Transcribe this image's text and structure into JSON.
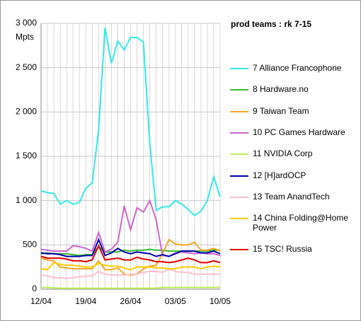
{
  "chart_data": {
    "type": "line",
    "title": "prod teams :  rk 7-15",
    "y_label": "Mpts",
    "categories": [
      "12/04",
      null,
      null,
      null,
      null,
      null,
      null,
      "19/04",
      null,
      null,
      null,
      null,
      null,
      null,
      "26/04",
      null,
      null,
      null,
      null,
      null,
      null,
      "03/05",
      null,
      null,
      null,
      null,
      null,
      null,
      "10/05"
    ],
    "ylim": [
      0,
      3000
    ],
    "yticks": [
      0,
      500,
      {
        "value": 1000,
        "label": "1 000"
      },
      {
        "value": 1500,
        "label": "1 500"
      },
      {
        "value": 2000,
        "label": "2 000"
      },
      {
        "value": 2500,
        "label": "2 500"
      },
      {
        "value": 3000,
        "label": "3 000"
      }
    ],
    "grid": true,
    "legend": "right",
    "series": [
      {
        "name": "7 Alliance Francophone",
        "color": "#33e8e8",
        "values": [
          1110,
          1090,
          1080,
          960,
          1000,
          960,
          980,
          1140,
          1200,
          1800,
          2950,
          2550,
          2800,
          2700,
          2840,
          2840,
          2790,
          1650,
          890,
          930,
          930,
          1000,
          960,
          900,
          830,
          880,
          1000,
          1270,
          1040
        ]
      },
      {
        "name": "8 Hardware.no",
        "color": "#33bb33",
        "values": [
          400,
          410,
          400,
          400,
          400,
          390,
          380,
          390,
          390,
          480,
          420,
          420,
          420,
          440,
          430,
          440,
          440,
          450,
          440,
          440,
          430,
          430,
          430,
          430,
          430,
          430,
          430,
          440,
          440
        ]
      },
      {
        "name": "9 Taiwan Team",
        "color": "#f5a623",
        "values": [
          350,
          330,
          320,
          250,
          240,
          230,
          230,
          230,
          230,
          320,
          220,
          220,
          240,
          170,
          160,
          170,
          230,
          260,
          270,
          400,
          560,
          510,
          500,
          500,
          530,
          440,
          440,
          460,
          430
        ]
      },
      {
        "name": "10 PC Games Hardware",
        "color": "#cc66cc",
        "values": [
          450,
          440,
          430,
          430,
          430,
          490,
          480,
          460,
          430,
          640,
          420,
          450,
          530,
          940,
          670,
          920,
          870,
          1000,
          780,
          380,
          370,
          410,
          420,
          410,
          400,
          410,
          400,
          400,
          380
        ]
      },
      {
        "name": "11 NVIDIA Corp",
        "color": "#bbee55",
        "values": [
          20,
          20,
          15,
          10,
          10,
          10,
          10,
          10,
          10,
          10,
          10,
          10,
          10,
          10,
          10,
          10,
          10,
          10,
          10,
          20,
          20,
          20,
          20,
          20,
          20,
          20,
          20,
          20,
          20
        ]
      },
      {
        "name": "12 [H]ardOCP",
        "color": "#0000aa",
        "values": [
          410,
          400,
          400,
          390,
          370,
          370,
          370,
          380,
          380,
          560,
          380,
          410,
          460,
          420,
          400,
          420,
          410,
          400,
          370,
          390,
          370,
          400,
          430,
          430,
          430,
          410,
          410,
          430,
          400
        ]
      },
      {
        "name": "13 Team AnandTech",
        "color": "#ffc0cb",
        "values": [
          160,
          150,
          130,
          130,
          120,
          130,
          140,
          150,
          150,
          200,
          170,
          160,
          160,
          160,
          170,
          170,
          190,
          200,
          200,
          190,
          230,
          200,
          190,
          190,
          170,
          170,
          170,
          170,
          170
        ]
      },
      {
        "name": "14 China Folding@Home Power",
        "color": "#ffcc00",
        "values": [
          230,
          220,
          300,
          280,
          270,
          270,
          260,
          250,
          250,
          290,
          270,
          260,
          260,
          240,
          220,
          250,
          250,
          250,
          240,
          240,
          230,
          230,
          250,
          250,
          250,
          230,
          250,
          260,
          250
        ]
      },
      {
        "name": "15 TSC! Russia",
        "color": "#e00000",
        "values": [
          370,
          350,
          350,
          350,
          340,
          320,
          320,
          310,
          330,
          490,
          330,
          340,
          350,
          330,
          330,
          360,
          340,
          330,
          310,
          310,
          300,
          310,
          330,
          350,
          330,
          300,
          300,
          320,
          300
        ]
      }
    ]
  }
}
